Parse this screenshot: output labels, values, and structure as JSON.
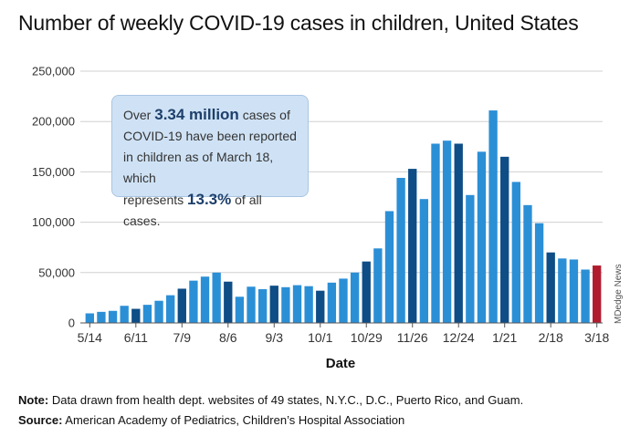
{
  "chart_data": {
    "type": "bar",
    "title": "Number of weekly COVID-19 cases in children, United States",
    "xlabel": "Date",
    "ylabel": "",
    "ylim": [
      0,
      250000
    ],
    "yticks": [
      "0",
      "50,000",
      "100,000",
      "150,000",
      "200,000",
      "250,000"
    ],
    "ytick_values": [
      0,
      50000,
      100000,
      150000,
      200000,
      250000
    ],
    "xticks": [
      "5/14",
      "6/11",
      "7/9",
      "8/6",
      "9/3",
      "10/1",
      "10/29",
      "11/26",
      "12/24",
      "1/21",
      "2/18",
      "3/18"
    ],
    "xtick_index": [
      0,
      4,
      8,
      12,
      16,
      20,
      24,
      28,
      32,
      36,
      40,
      44
    ],
    "grid": "horizontal",
    "colors": {
      "light": "#2b8fd6",
      "dark": "#0e4d86",
      "highlight": "#b01c2e"
    },
    "values": [
      9500,
      11000,
      12000,
      17000,
      14000,
      18000,
      22000,
      27500,
      34000,
      42000,
      46000,
      50000,
      41000,
      26000,
      36000,
      33500,
      37000,
      35500,
      37500,
      36500,
      32000,
      40000,
      44000,
      50000,
      61000,
      74000,
      111000,
      144000,
      153000,
      123000,
      178000,
      181000,
      178000,
      127000,
      170000,
      211000,
      165000,
      140000,
      117000,
      99000,
      70000,
      64000,
      63000,
      53000,
      57000
    ],
    "shades": [
      "light",
      "light",
      "light",
      "light",
      "dark",
      "light",
      "light",
      "light",
      "dark",
      "light",
      "light",
      "light",
      "dark",
      "light",
      "light",
      "light",
      "dark",
      "light",
      "light",
      "light",
      "dark",
      "light",
      "light",
      "light",
      "dark",
      "light",
      "light",
      "light",
      "dark",
      "light",
      "light",
      "light",
      "dark",
      "light",
      "light",
      "light",
      "dark",
      "light",
      "light",
      "light",
      "dark",
      "light",
      "light",
      "light",
      "highlight"
    ]
  },
  "callout": {
    "pre": "Over ",
    "highlight1": "3.34 million",
    "mid1": " cases of",
    "line2": "COVID-19 have been reported",
    "line3": "in children as of March 18, which",
    "pre4": "represents ",
    "highlight2": "13.3%",
    "post4": " of all cases."
  },
  "watermark": "MDedge News",
  "notes": {
    "note_label": "Note:",
    "note_text": " Data drawn from health dept. websites of 49 states, N.Y.C., D.C., Puerto Rico, and Guam.",
    "source_label": "Source:",
    "source_text": " American Academy of Pediatrics, Children’s Hospital Association"
  }
}
